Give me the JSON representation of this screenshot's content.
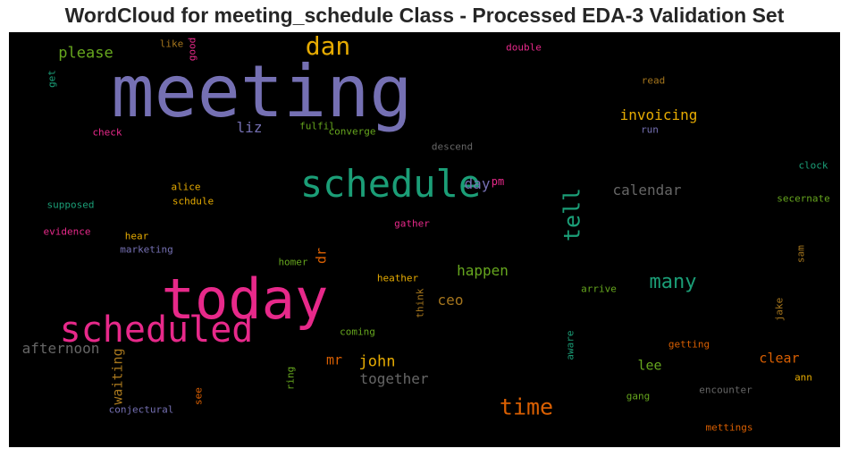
{
  "title": "WordCloud for meeting_schedule Class - Processed EDA-3 Validation Set",
  "chart_data": {
    "type": "wordcloud",
    "background": "#000000",
    "colormap": "Dark2",
    "words": [
      {
        "text": "meeting",
        "color": "#7570b3",
        "vertical": false
      },
      {
        "text": "today",
        "color": "#e7298a",
        "vertical": false
      },
      {
        "text": "schedule",
        "color": "#1b9e77",
        "vertical": false
      },
      {
        "text": "scheduled",
        "color": "#e7298a",
        "vertical": false
      },
      {
        "text": "dan",
        "color": "#e6ab02",
        "vertical": false
      },
      {
        "text": "time",
        "color": "#d95f02",
        "vertical": false
      },
      {
        "text": "tell",
        "color": "#1b9e77",
        "vertical": true
      },
      {
        "text": "many",
        "color": "#1b9e77",
        "vertical": false
      },
      {
        "text": "please",
        "color": "#66a61e",
        "vertical": false
      },
      {
        "text": "invoicing",
        "color": "#e6ab02",
        "vertical": false
      },
      {
        "text": "liz",
        "color": "#7570b3",
        "vertical": false
      },
      {
        "text": "calendar",
        "color": "#666666",
        "vertical": false
      },
      {
        "text": "day",
        "color": "#7570b3",
        "vertical": false
      },
      {
        "text": "pm",
        "color": "#e7298a",
        "vertical": false
      },
      {
        "text": "happen",
        "color": "#66a61e",
        "vertical": false
      },
      {
        "text": "ceo",
        "color": "#a6761d",
        "vertical": false
      },
      {
        "text": "john",
        "color": "#e6ab02",
        "vertical": false
      },
      {
        "text": "mr",
        "color": "#d95f02",
        "vertical": false
      },
      {
        "text": "together",
        "color": "#666666",
        "vertical": false
      },
      {
        "text": "afternoon",
        "color": "#666666",
        "vertical": false
      },
      {
        "text": "waiting",
        "color": "#a6761d",
        "vertical": true
      },
      {
        "text": "dr",
        "color": "#d95f02",
        "vertical": true
      },
      {
        "text": "lee",
        "color": "#66a61e",
        "vertical": false
      },
      {
        "text": "clear",
        "color": "#d95f02",
        "vertical": false
      },
      {
        "text": "like",
        "color": "#a6761d",
        "vertical": false
      },
      {
        "text": "good",
        "color": "#e7298a",
        "vertical": true
      },
      {
        "text": "double",
        "color": "#e7298a",
        "vertical": false
      },
      {
        "text": "get",
        "color": "#1b9e77",
        "vertical": true
      },
      {
        "text": "read",
        "color": "#a6761d",
        "vertical": false
      },
      {
        "text": "check",
        "color": "#e7298a",
        "vertical": false
      },
      {
        "text": "fulfil",
        "color": "#66a61e",
        "vertical": false
      },
      {
        "text": "converge",
        "color": "#66a61e",
        "vertical": false
      },
      {
        "text": "run",
        "color": "#7570b3",
        "vertical": false
      },
      {
        "text": "descend",
        "color": "#666666",
        "vertical": false
      },
      {
        "text": "clock",
        "color": "#1b9e77",
        "vertical": false
      },
      {
        "text": "alice",
        "color": "#e6ab02",
        "vertical": false
      },
      {
        "text": "schdule",
        "color": "#e6ab02",
        "vertical": false
      },
      {
        "text": "supposed",
        "color": "#1b9e77",
        "vertical": false
      },
      {
        "text": "secernate",
        "color": "#66a61e",
        "vertical": false
      },
      {
        "text": "gather",
        "color": "#e7298a",
        "vertical": false
      },
      {
        "text": "evidence",
        "color": "#e7298a",
        "vertical": false
      },
      {
        "text": "hear",
        "color": "#e6ab02",
        "vertical": false
      },
      {
        "text": "marketing",
        "color": "#7570b3",
        "vertical": false
      },
      {
        "text": "homer",
        "color": "#66a61e",
        "vertical": false
      },
      {
        "text": "sam",
        "color": "#a6761d",
        "vertical": true
      },
      {
        "text": "heather",
        "color": "#e6ab02",
        "vertical": false
      },
      {
        "text": "think",
        "color": "#a6761d",
        "vertical": true
      },
      {
        "text": "arrive",
        "color": "#66a61e",
        "vertical": false
      },
      {
        "text": "jake",
        "color": "#a6761d",
        "vertical": true
      },
      {
        "text": "coming",
        "color": "#66a61e",
        "vertical": false
      },
      {
        "text": "aware",
        "color": "#1b9e77",
        "vertical": true
      },
      {
        "text": "getting",
        "color": "#d95f02",
        "vertical": false
      },
      {
        "text": "ring",
        "color": "#66a61e",
        "vertical": true
      },
      {
        "text": "ann",
        "color": "#e6ab02",
        "vertical": false
      },
      {
        "text": "see",
        "color": "#d95f02",
        "vertical": true
      },
      {
        "text": "encounter",
        "color": "#666666",
        "vertical": false
      },
      {
        "text": "conjectural",
        "color": "#7570b3",
        "vertical": false
      },
      {
        "text": "gang",
        "color": "#66a61e",
        "vertical": false
      },
      {
        "text": "mettings",
        "color": "#d95f02",
        "vertical": false
      }
    ]
  }
}
